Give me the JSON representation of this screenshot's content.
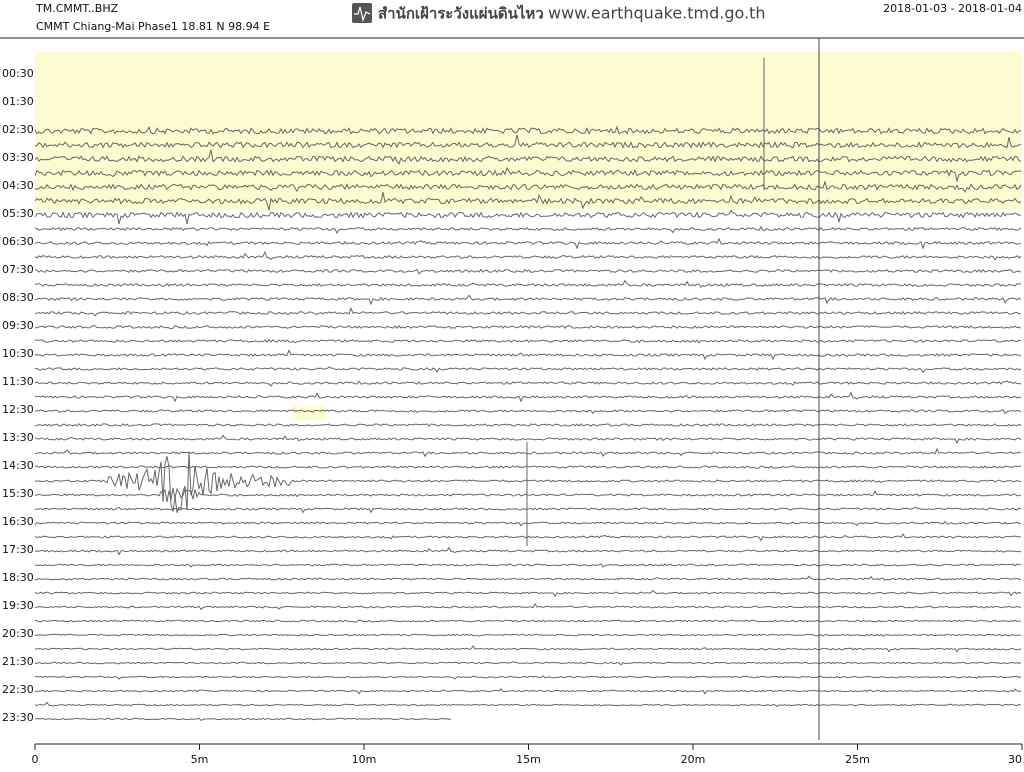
{
  "chart_data": {
    "type": "helicorder",
    "station": "TM.CMMT..BHZ",
    "location": "CMMT Chiang-Mai Phase1  18.81 N 98.94 E",
    "agency": "สำนักเฝ้าระวังแผ่นดินไหว",
    "url": "www.earthquake.tmd.go.th",
    "date_range": "2018-01-03 - 2018-01-04",
    "rows": [
      "00:30",
      "01:30",
      "02:30",
      "03:30",
      "04:30",
      "05:30",
      "06:30",
      "07:30",
      "08:30",
      "09:30",
      "10:30",
      "11:30",
      "12:30",
      "13:30",
      "14:30",
      "15:30",
      "16:30",
      "17:30",
      "18:30",
      "19:30",
      "20:30",
      "21:30",
      "22:30",
      "23:30"
    ],
    "xlim": [
      0,
      30
    ],
    "xticks": [
      0,
      {
        "value": 5,
        "label": "5m"
      },
      {
        "value": 10,
        "label": "10m"
      },
      {
        "value": 15,
        "label": "15m"
      },
      {
        "value": 20,
        "label": "20m"
      },
      {
        "value": 25,
        "label": "25m"
      },
      30
    ]
  }
}
